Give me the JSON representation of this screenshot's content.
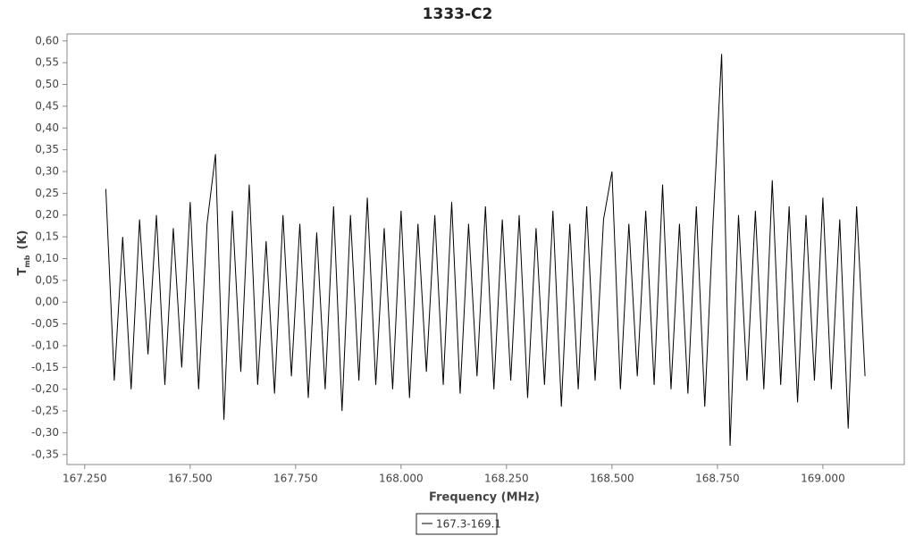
{
  "chart_data": {
    "type": "line",
    "title": "1333-C2",
    "xlabel": "Frequency (MHz)",
    "ylabel": "T",
    "ylabel_sub": "mb",
    "ylabel_unit": "(K)",
    "xlim": [
      167.208,
      169.193
    ],
    "ylim": [
      -0.373,
      0.616
    ],
    "xticks": [
      {
        "value": 167.25,
        "label": "167.250"
      },
      {
        "value": 167.5,
        "label": "167.500"
      },
      {
        "value": 167.75,
        "label": "167.750"
      },
      {
        "value": 168.0,
        "label": "168.000"
      },
      {
        "value": 168.25,
        "label": "168.250"
      },
      {
        "value": 168.5,
        "label": "168.500"
      },
      {
        "value": 168.75,
        "label": "168.750"
      },
      {
        "value": 169.0,
        "label": "169.000"
      }
    ],
    "yticks": [
      {
        "value": -0.35,
        "label": "-0,35"
      },
      {
        "value": -0.3,
        "label": "-0,30"
      },
      {
        "value": -0.25,
        "label": "-0,25"
      },
      {
        "value": -0.2,
        "label": "-0,20"
      },
      {
        "value": -0.15,
        "label": "-0,15"
      },
      {
        "value": -0.1,
        "label": "-0,10"
      },
      {
        "value": -0.05,
        "label": "-0,05"
      },
      {
        "value": 0,
        "label": "0,00"
      },
      {
        "value": 0.05,
        "label": "0,05"
      },
      {
        "value": 0.1,
        "label": "0,10"
      },
      {
        "value": 0.15,
        "label": "0,15"
      },
      {
        "value": 0.2,
        "label": "0,20"
      },
      {
        "value": 0.25,
        "label": "0,25"
      },
      {
        "value": 0.3,
        "label": "0,30"
      },
      {
        "value": 0.35,
        "label": "0,35"
      },
      {
        "value": 0.4,
        "label": "0,40"
      },
      {
        "value": 0.45,
        "label": "0,45"
      },
      {
        "value": 0.5,
        "label": "0,50"
      },
      {
        "value": 0.55,
        "label": "0,55"
      },
      {
        "value": 0.6,
        "label": "0,60"
      }
    ],
    "grid": false,
    "legend": "bottom",
    "x": [
      167.3,
      167.32,
      167.34,
      167.36,
      167.38,
      167.4,
      167.42,
      167.44,
      167.46,
      167.48,
      167.5,
      167.52,
      167.54,
      167.56,
      167.58,
      167.6,
      167.62,
      167.64,
      167.66,
      167.68,
      167.7,
      167.72,
      167.74,
      167.76,
      167.78,
      167.8,
      167.82,
      167.84,
      167.86,
      167.88,
      167.9,
      167.92,
      167.94,
      167.96,
      167.98,
      168.0,
      168.02,
      168.04,
      168.06,
      168.08,
      168.1,
      168.12,
      168.14,
      168.16,
      168.18,
      168.2,
      168.22,
      168.24,
      168.26,
      168.28,
      168.3,
      168.32,
      168.34,
      168.36,
      168.38,
      168.4,
      168.42,
      168.44,
      168.46,
      168.48,
      168.5,
      168.52,
      168.54,
      168.56,
      168.58,
      168.6,
      168.62,
      168.64,
      168.66,
      168.68,
      168.7,
      168.72,
      168.74,
      168.76,
      168.78,
      168.8,
      168.82,
      168.84,
      168.86,
      168.88,
      168.9,
      168.92,
      168.94,
      168.96,
      168.98,
      169.0,
      169.02,
      169.04,
      169.06,
      169.08,
      169.1
    ],
    "series": [
      {
        "name": "167.3-169.1",
        "color": "#000000",
        "values": [
          0.26,
          -0.18,
          0.15,
          -0.2,
          0.19,
          -0.12,
          0.2,
          -0.19,
          0.17,
          -0.15,
          0.23,
          -0.2,
          0.18,
          0.34,
          -0.27,
          0.21,
          -0.16,
          0.27,
          -0.19,
          0.14,
          -0.21,
          0.2,
          -0.17,
          0.18,
          -0.22,
          0.16,
          -0.2,
          0.22,
          -0.25,
          0.2,
          -0.18,
          0.24,
          -0.19,
          0.17,
          -0.2,
          0.21,
          -0.22,
          0.18,
          -0.16,
          0.2,
          -0.19,
          0.23,
          -0.21,
          0.18,
          -0.17,
          0.22,
          -0.2,
          0.19,
          -0.18,
          0.2,
          -0.22,
          0.17,
          -0.19,
          0.21,
          -0.24,
          0.18,
          -0.2,
          0.22,
          -0.18,
          0.19,
          0.3,
          -0.2,
          0.18,
          -0.17,
          0.21,
          -0.19,
          0.27,
          -0.2,
          0.18,
          -0.21,
          0.22,
          -0.24,
          0.19,
          0.57,
          -0.33,
          0.2,
          -0.18,
          0.21,
          -0.2,
          0.28,
          -0.19,
          0.22,
          -0.23,
          0.2,
          -0.18,
          0.24,
          -0.2,
          0.19,
          -0.29,
          0.22,
          -0.17
        ]
      }
    ]
  }
}
